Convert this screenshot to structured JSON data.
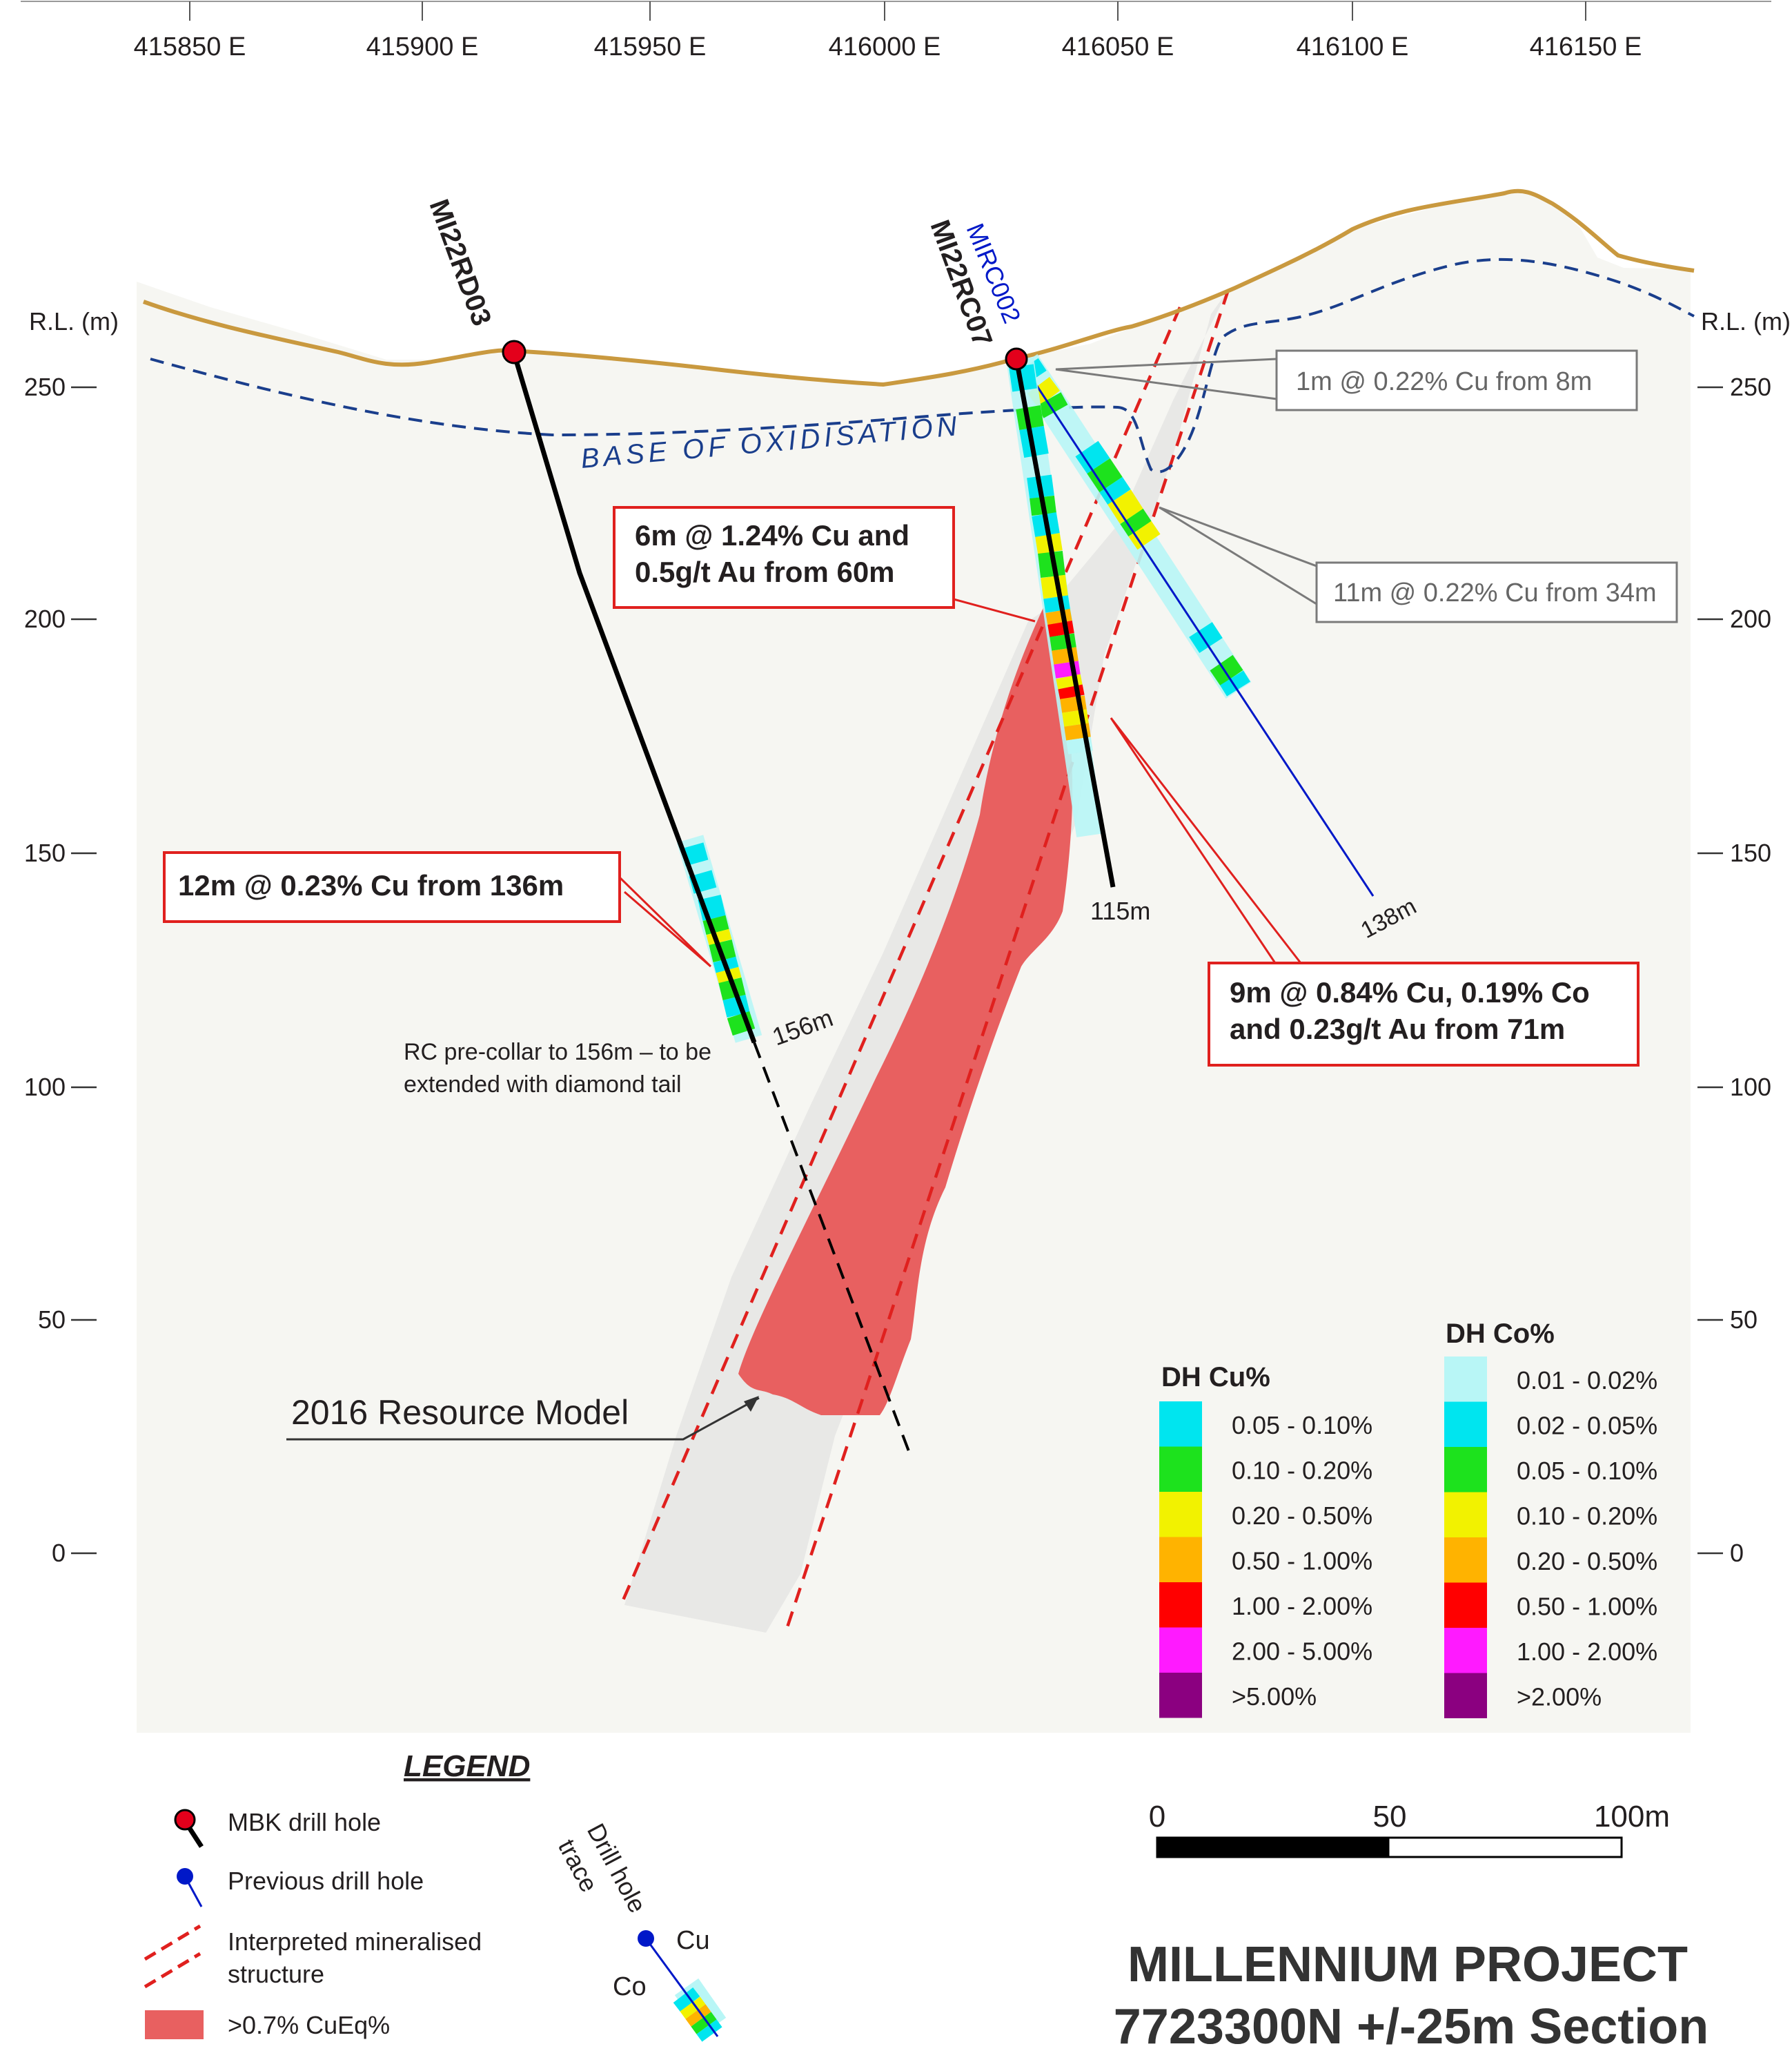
{
  "easting_labels": [
    "415850 E",
    "415900 E",
    "415950 E",
    "416000 E",
    "416050 E",
    "416100 E",
    "416150 E"
  ],
  "rl_axis_label": "R.L. (m)",
  "rl_ticks": [
    "250",
    "200",
    "150",
    "100",
    "50",
    "0"
  ],
  "oxidation_label": "BASE OF OXIDISATION",
  "holes": {
    "rd03": {
      "name": "MI22RD03",
      "depth": "156m"
    },
    "rc07": {
      "name": "MI22RC07",
      "depth": "115m"
    },
    "mirc": {
      "name": "MIRC002",
      "depth": "138m"
    }
  },
  "intercepts": {
    "a_line1": "6m @ 1.24% Cu and",
    "a_line2": "0.5g/t Au from 60m",
    "b": "12m @ 0.23% Cu from 136m",
    "c_line1": "9m @ 0.84% Cu, 0.19% Co",
    "c_line2": "and 0.23g/t Au from 71m",
    "d": "1m @ 0.22% Cu from 8m",
    "e": "11m @ 0.22% Cu from 34m"
  },
  "notes": {
    "precollar_line1": "RC pre-collar to 156m – to be",
    "precollar_line2": "extended with diamond tail",
    "resource": "2016 Resource Model"
  },
  "cu_legend": {
    "title": "DH Cu%",
    "items": [
      {
        "label": "0.05 - 0.10%",
        "color": "#00e5ef"
      },
      {
        "label": "0.10 - 0.20%",
        "color": "#1de21d"
      },
      {
        "label": "0.20 - 0.50%",
        "color": "#f2f200"
      },
      {
        "label": "0.50 - 1.00%",
        "color": "#ffb300"
      },
      {
        "label": "1.00 - 2.00%",
        "color": "#ff0000"
      },
      {
        "label": "2.00 - 5.00%",
        "color": "#ff1aff"
      },
      {
        "label": ">5.00%",
        "color": "#8b0080"
      }
    ]
  },
  "co_legend": {
    "title": "DH Co%",
    "items": [
      {
        "label": "0.01 - 0.02%",
        "color": "#b8f6f6"
      },
      {
        "label": "0.02 - 0.05%",
        "color": "#00e5ef"
      },
      {
        "label": "0.05 - 0.10%",
        "color": "#1de21d"
      },
      {
        "label": "0.10 - 0.20%",
        "color": "#f2f200"
      },
      {
        "label": "0.20 - 0.50%",
        "color": "#ffb300"
      },
      {
        "label": "0.50 - 1.00%",
        "color": "#ff0000"
      },
      {
        "label": "1.00 - 2.00%",
        "color": "#ff1aff"
      },
      {
        "label": ">2.00%",
        "color": "#8b0080"
      }
    ]
  },
  "legend": {
    "title": "LEGEND",
    "mbk": "MBK drill hole",
    "previous": "Previous drill hole",
    "structure_line1": "Interpreted mineralised",
    "structure_line2": "structure",
    "cueq": ">0.7% CuEq%",
    "trace_line1": "Drill hole",
    "trace_line2": "trace",
    "cu": "Cu",
    "co": "Co"
  },
  "scale": {
    "s0": "0",
    "s50": "50",
    "s100": "100m"
  },
  "title": {
    "line1": "MILLENNIUM PROJECT",
    "line2": "7723300N +/-25m Section"
  },
  "colors": {
    "surface": "#c9993f",
    "section_bg": "#f6f6f2",
    "resource": "#e86060",
    "structure": "#e8e8e6",
    "dashed_red": "#e0201e",
    "oxidation": "#1a3e8c",
    "collar": "#e3001b",
    "previous": "#0018c8"
  }
}
